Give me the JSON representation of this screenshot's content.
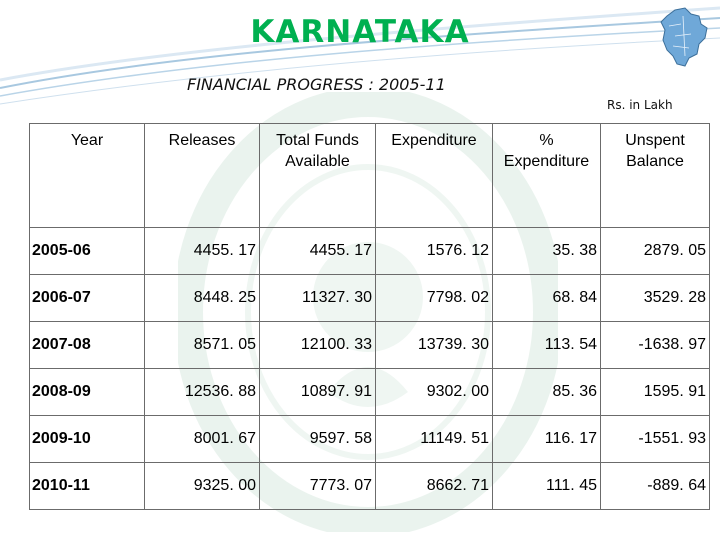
{
  "header": {
    "title": "KARNATAKA",
    "subtitle": "FINANCIAL PROGRESS : 2005-11",
    "unit_note": "Rs. in Lakh"
  },
  "colors": {
    "title": "#00b050",
    "swoosh": "#a8c8e0",
    "watermark": "#2e8b57"
  },
  "icons": {
    "map": "karnataka-map-icon",
    "watermark": "horticulture-mission-seal"
  },
  "table": {
    "columns": [
      {
        "line1": "Year",
        "line2": ""
      },
      {
        "line1": "Releases",
        "line2": ""
      },
      {
        "line1": "Total Funds",
        "line2": "Available"
      },
      {
        "line1": "Expenditure",
        "line2": ""
      },
      {
        "line1": "%",
        "line2": "Expenditure"
      },
      {
        "line1": "Unspent",
        "line2": "Balance"
      }
    ],
    "rows": [
      {
        "year": "2005-06",
        "releases": "4455. 17",
        "total_funds": "4455. 17",
        "expenditure": "1576. 12",
        "percent": "35. 38",
        "unspent": "2879. 05"
      },
      {
        "year": "2006-07",
        "releases": "8448. 25",
        "total_funds": "11327. 30",
        "expenditure": "7798. 02",
        "percent": "68. 84",
        "unspent": "3529. 28"
      },
      {
        "year": "2007-08",
        "releases": "8571. 05",
        "total_funds": "12100. 33",
        "expenditure": "13739. 30",
        "percent": "113. 54",
        "unspent": "-1638. 97"
      },
      {
        "year": "2008-09",
        "releases": "12536. 88",
        "total_funds": "10897. 91",
        "expenditure": "9302. 00",
        "percent": "85. 36",
        "unspent": "1595. 91"
      },
      {
        "year": "2009-10",
        "releases": "8001. 67",
        "total_funds": "9597. 58",
        "expenditure": "11149. 51",
        "percent": "116. 17",
        "unspent": "-1551. 93"
      },
      {
        "year": "2010-11",
        "releases": "9325. 00",
        "total_funds": "7773. 07",
        "expenditure": "8662. 71",
        "percent": "111. 45",
        "unspent": "-889. 64"
      }
    ]
  }
}
